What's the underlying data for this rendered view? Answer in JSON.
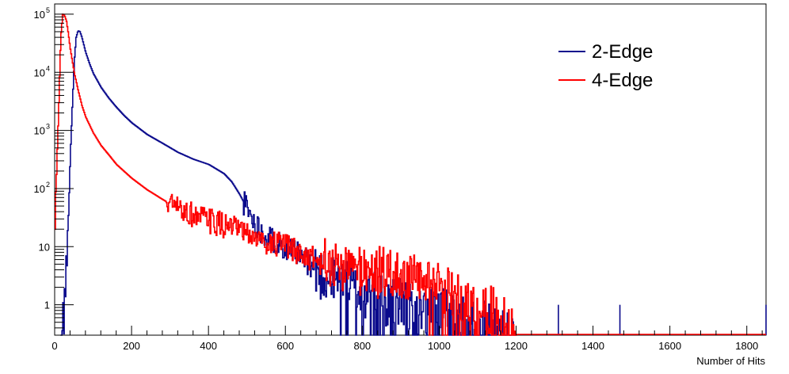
{
  "chart_data": {
    "type": "line",
    "title": "",
    "xlabel": "Number of Hits",
    "ylabel": "",
    "xlim": [
      0,
      1850
    ],
    "ylim": [
      0.3,
      150000
    ],
    "y_scale": "log",
    "grid": false,
    "legend_position": "top-right",
    "x_ticks": [
      {
        "value": 0,
        "label": "0"
      },
      {
        "value": 200,
        "label": "200"
      },
      {
        "value": 400,
        "label": "400"
      },
      {
        "value": 600,
        "label": "600"
      },
      {
        "value": 800,
        "label": "800"
      },
      {
        "value": 1000,
        "label": "1000"
      },
      {
        "value": 1200,
        "label": "1200"
      },
      {
        "value": 1400,
        "label": "1400"
      },
      {
        "value": 1600,
        "label": "1600"
      },
      {
        "value": 1800,
        "label": "1800"
      }
    ],
    "y_ticks": [
      {
        "value": 1,
        "base": "1",
        "exp": ""
      },
      {
        "value": 10,
        "base": "10",
        "exp": ""
      },
      {
        "value": 100,
        "base": "10",
        "exp": "2"
      },
      {
        "value": 1000,
        "base": "10",
        "exp": "3"
      },
      {
        "value": 10000,
        "base": "10",
        "exp": "4"
      },
      {
        "value": 100000,
        "base": "10",
        "exp": "5"
      }
    ],
    "series": [
      {
        "name": "2-Edge",
        "color": "#0a0a8c",
        "x": [
          15,
          20,
          25,
          30,
          35,
          40,
          45,
          50,
          55,
          60,
          65,
          70,
          80,
          90,
          100,
          120,
          140,
          160,
          180,
          200,
          240,
          280,
          320,
          360,
          400,
          440,
          460,
          480,
          500,
          520,
          540,
          560,
          580,
          600,
          620,
          650,
          680,
          700,
          730,
          760,
          800,
          850,
          900,
          950,
          1000,
          1050,
          1100,
          1150,
          1200
        ],
        "y": [
          0.3,
          0.5,
          1,
          5,
          30,
          400,
          2500,
          15000,
          40000,
          52000,
          50000,
          40000,
          22000,
          14000,
          9500,
          5500,
          3600,
          2500,
          1800,
          1350,
          850,
          600,
          420,
          320,
          260,
          180,
          130,
          80,
          45,
          25,
          18,
          14,
          12,
          10,
          8,
          6,
          4,
          3,
          2.5,
          2,
          1.5,
          1.2,
          1,
          0.8,
          0.7,
          0.6,
          0.5,
          0.4,
          0.3
        ],
        "spikes": [
          [
            1310,
            1
          ],
          [
            1470,
            1
          ],
          [
            1850,
            1
          ]
        ]
      },
      {
        "name": "4-Edge",
        "color": "#ff0000",
        "x": [
          0,
          5,
          10,
          15,
          20,
          25,
          30,
          35,
          40,
          50,
          60,
          70,
          80,
          100,
          120,
          140,
          160,
          200,
          240,
          280,
          320,
          360,
          400,
          450,
          500,
          550,
          600,
          650,
          700,
          750,
          800,
          850,
          900,
          950,
          1000,
          1050,
          1100,
          1150,
          1200
        ],
        "y": [
          20,
          300,
          3000,
          40000,
          100000,
          95000,
          75000,
          45000,
          25000,
          10000,
          5000,
          2700,
          1700,
          900,
          550,
          380,
          260,
          150,
          95,
          65,
          45,
          35,
          28,
          22,
          16,
          12,
          10,
          7,
          5,
          4.5,
          4,
          3.5,
          3,
          2.5,
          2,
          1.5,
          1,
          0.7,
          0.3
        ],
        "spikes": []
      }
    ]
  }
}
